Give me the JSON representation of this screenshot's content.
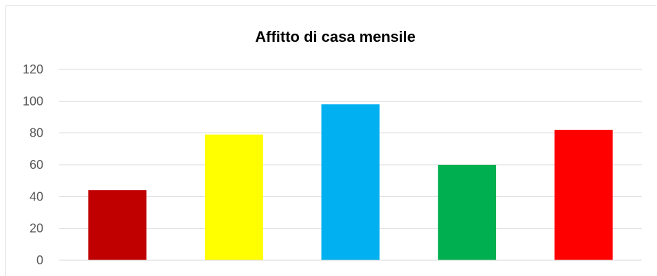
{
  "chart_data": {
    "type": "bar",
    "title": "Affitto di casa mensile",
    "xlabel": "",
    "ylabel": "",
    "categories": [
      "",
      "",
      "",
      "",
      ""
    ],
    "values": [
      44,
      79,
      98,
      60,
      82
    ],
    "colors": [
      "#c00000",
      "#ffff00",
      "#00b0f0",
      "#00b050",
      "#ff0000"
    ],
    "ylim": [
      0,
      120
    ],
    "yticks": [
      "0",
      "20",
      "40",
      "60",
      "80",
      "100",
      "120"
    ],
    "grid": true,
    "legend": "none"
  }
}
